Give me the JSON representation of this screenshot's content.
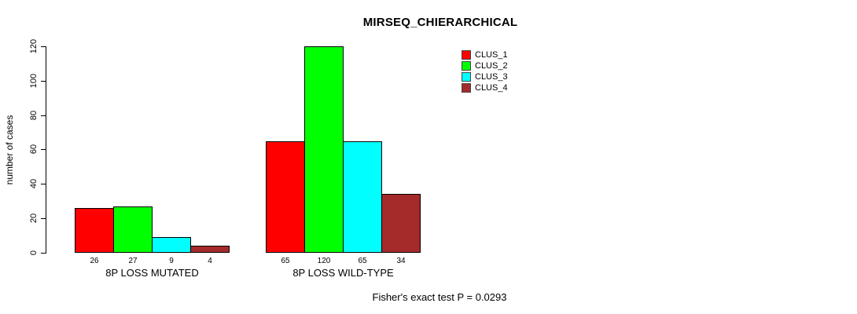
{
  "chart_data": {
    "type": "bar",
    "title": "MIRSEQ_CHIERARCHICAL",
    "ylabel": "number of cases",
    "xlabel": "",
    "annotation": "Fisher's exact test P = 0.0293",
    "categories": [
      "8P LOSS MUTATED",
      "8P LOSS WILD-TYPE"
    ],
    "series": [
      {
        "name": "CLUS_1",
        "color": "#FF0000",
        "values": [
          26,
          65
        ]
      },
      {
        "name": "CLUS_2",
        "color": "#00FF00",
        "values": [
          27,
          120
        ]
      },
      {
        "name": "CLUS_3",
        "color": "#00FFFF",
        "values": [
          9,
          65
        ]
      },
      {
        "name": "CLUS_4",
        "color": "#A52A2A",
        "values": [
          4,
          34
        ]
      }
    ],
    "bar_value_labels": [
      [
        26,
        27,
        9,
        4
      ],
      [
        65,
        120,
        65,
        34
      ]
    ],
    "yticks": [
      0,
      20,
      40,
      60,
      80,
      100,
      120
    ],
    "ylim": [
      0,
      120
    ],
    "grid": false,
    "legend_position": "top-right",
    "background_color": "#FFFFFF",
    "axis_color": "#000000"
  }
}
